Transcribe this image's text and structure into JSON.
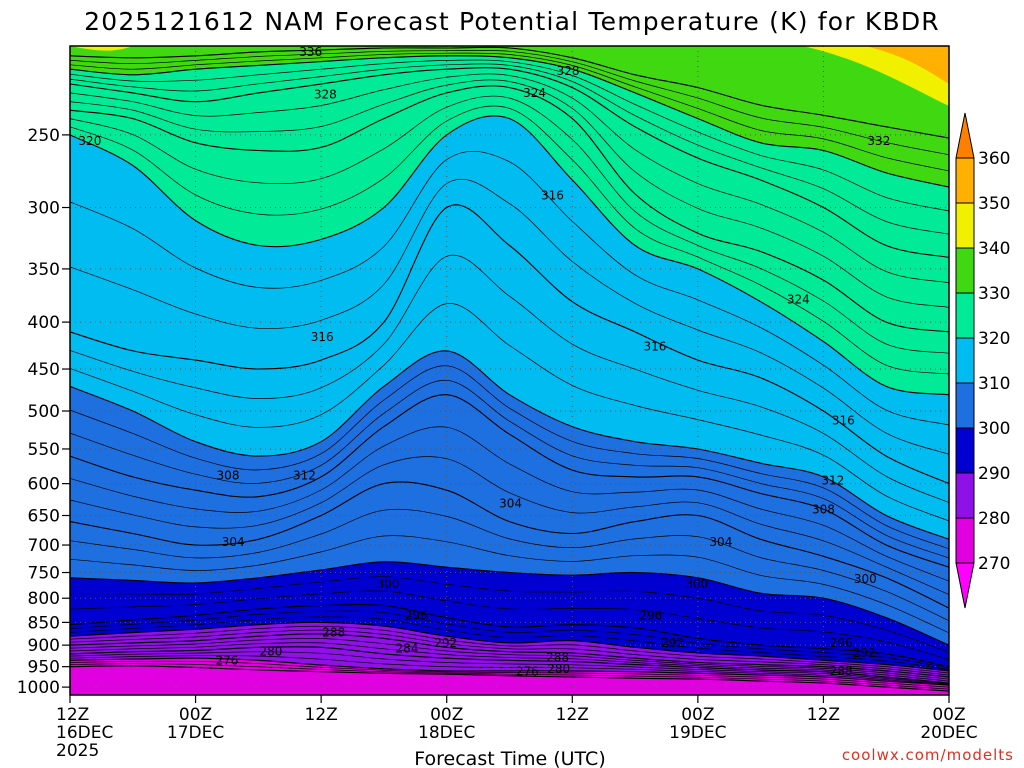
{
  "chart_data": {
    "type": "heatmap",
    "title": "2025121612 NAM Forecast Potential Temperature (K) for KBDR",
    "xlabel": "Forecast Time (UTC)",
    "ylabel": "",
    "credit": "coolwx.com/modelts",
    "x_ticks": [
      {
        "hours": 0,
        "lines": [
          "12Z",
          "16DEC",
          "2025"
        ]
      },
      {
        "hours": 12,
        "lines": [
          "00Z",
          "17DEC"
        ]
      },
      {
        "hours": 24,
        "lines": [
          "12Z"
        ]
      },
      {
        "hours": 36,
        "lines": [
          "00Z",
          "18DEC"
        ]
      },
      {
        "hours": 48,
        "lines": [
          "12Z"
        ]
      },
      {
        "hours": 60,
        "lines": [
          "00Z",
          "19DEC"
        ]
      },
      {
        "hours": 72,
        "lines": [
          "12Z"
        ]
      },
      {
        "hours": 84,
        "lines": [
          "00Z",
          "20DEC"
        ]
      }
    ],
    "x_range_hours": [
      0,
      84
    ],
    "y_ticks": [
      250,
      300,
      350,
      400,
      450,
      500,
      550,
      600,
      650,
      700,
      750,
      800,
      850,
      900,
      950,
      1000
    ],
    "y_range_hpa": [
      200,
      1020
    ],
    "y_scale": "log-pressure (inverted)",
    "grid": true,
    "colorbar": {
      "labels": [
        270,
        280,
        290,
        300,
        310,
        320,
        330,
        340,
        350,
        360
      ],
      "bands": [
        {
          "min": 270,
          "max": 280,
          "color": "#e000e0"
        },
        {
          "min": 280,
          "max": 290,
          "color": "#9010e8"
        },
        {
          "min": 290,
          "max": 300,
          "color": "#0000d0"
        },
        {
          "min": 300,
          "max": 310,
          "color": "#1e70e0"
        },
        {
          "min": 310,
          "max": 320,
          "color": "#00bcf0"
        },
        {
          "min": 320,
          "max": 330,
          "color": "#00ea98"
        },
        {
          "min": 330,
          "max": 340,
          "color": "#40d810"
        },
        {
          "min": 340,
          "max": 350,
          "color": "#f0f000"
        },
        {
          "min": 350,
          "max": 360,
          "color": "#ffb000"
        }
      ],
      "under_color": "#ff00ff",
      "over_color": "#ff8000",
      "ground_color": "#a0522d"
    },
    "isentropes": [
      {
        "theta": 276,
        "p": [
          950,
          948,
          952,
          958,
          962,
          966,
          968,
          972,
          975,
          978,
          980,
          985,
          990,
          1000,
          1010
        ]
      },
      {
        "theta": 280,
        "p": [
          935,
          932,
          930,
          935,
          946,
          955,
          960,
          960,
          960,
          962,
          966,
          970,
          975,
          985,
          995
        ]
      },
      {
        "theta": 284,
        "p": [
          920,
          915,
          912,
          905,
          905,
          920,
          930,
          935,
          938,
          945,
          952,
          958,
          962,
          975,
          990
        ]
      },
      {
        "theta": 288,
        "p": [
          900,
          895,
          890,
          880,
          875,
          885,
          905,
          915,
          918,
          930,
          940,
          945,
          950,
          960,
          975
        ]
      },
      {
        "theta": 292,
        "p": [
          880,
          872,
          865,
          855,
          850,
          858,
          880,
          895,
          890,
          905,
          918,
          925,
          935,
          945,
          960
        ]
      },
      {
        "theta": 296,
        "p": [
          855,
          845,
          835,
          822,
          815,
          815,
          840,
          860,
          855,
          862,
          885,
          900,
          908,
          920,
          950
        ]
      },
      {
        "theta": 300,
        "p": [
          760,
          765,
          770,
          760,
          745,
          730,
          740,
          750,
          755,
          750,
          760,
          790,
          800,
          840,
          900
        ]
      },
      {
        "theta": 304,
        "p": [
          660,
          680,
          700,
          690,
          650,
          600,
          610,
          660,
          680,
          660,
          650,
          690,
          720,
          760,
          820
        ]
      },
      {
        "theta": 308,
        "p": [
          560,
          590,
          610,
          620,
          590,
          520,
          480,
          530,
          580,
          590,
          590,
          615,
          640,
          700,
          740
        ]
      },
      {
        "theta": 312,
        "p": [
          470,
          500,
          540,
          560,
          540,
          470,
          430,
          480,
          520,
          540,
          550,
          570,
          590,
          650,
          690
        ]
      },
      {
        "theta": 316,
        "p": [
          410,
          430,
          440,
          450,
          440,
          400,
          300,
          330,
          380,
          410,
          440,
          460,
          500,
          560,
          600
        ]
      },
      {
        "theta": 320,
        "p": [
          250,
          270,
          310,
          330,
          325,
          300,
          250,
          240,
          280,
          330,
          350,
          380,
          420,
          470,
          480
        ]
      },
      {
        "theta": 324,
        "p": [
          235,
          240,
          255,
          260,
          258,
          240,
          225,
          222,
          240,
          290,
          320,
          335,
          360,
          400,
          410
        ]
      },
      {
        "theta": 328,
        "p": [
          220,
          225,
          230,
          225,
          220,
          215,
          212,
          212,
          222,
          245,
          265,
          280,
          300,
          330,
          340
        ]
      },
      {
        "theta": 332,
        "p": [
          212,
          215,
          212,
          210,
          208,
          206,
          205,
          206,
          212,
          225,
          240,
          255,
          260,
          275,
          285
        ]
      },
      {
        "theta": 336,
        "p": [
          205,
          206,
          205,
          203,
          202,
          201,
          201,
          201,
          206,
          215,
          222,
          232,
          238,
          245,
          252
        ]
      }
    ],
    "contour_labels": [
      {
        "text": "336",
        "hours": 23,
        "p": 203
      },
      {
        "text": "328",
        "hours": 47.6,
        "p": 213
      },
      {
        "text": "324",
        "hours": 44.4,
        "p": 225
      },
      {
        "text": "328",
        "hours": 24.4,
        "p": 226
      },
      {
        "text": "320",
        "hours": 1.9,
        "p": 254
      },
      {
        "text": "332",
        "hours": 77.3,
        "p": 254
      },
      {
        "text": "316",
        "hours": 46.1,
        "p": 291
      },
      {
        "text": "324",
        "hours": 69.6,
        "p": 378
      },
      {
        "text": "316",
        "hours": 24.1,
        "p": 415
      },
      {
        "text": "316",
        "hours": 55.9,
        "p": 425
      },
      {
        "text": "316",
        "hours": 73.9,
        "p": 512
      },
      {
        "text": "308",
        "hours": 15.1,
        "p": 588
      },
      {
        "text": "312",
        "hours": 22.4,
        "p": 588
      },
      {
        "text": "312",
        "hours": 72.9,
        "p": 595
      },
      {
        "text": "308",
        "hours": 72.0,
        "p": 640
      },
      {
        "text": "304",
        "hours": 42.1,
        "p": 631
      },
      {
        "text": "304",
        "hours": 15.6,
        "p": 695
      },
      {
        "text": "304",
        "hours": 62.2,
        "p": 695
      },
      {
        "text": "300",
        "hours": 30.4,
        "p": 772
      },
      {
        "text": "300",
        "hours": 59.9,
        "p": 772
      },
      {
        "text": "300",
        "hours": 76.0,
        "p": 762
      },
      {
        "text": "296",
        "hours": 33.1,
        "p": 835
      },
      {
        "text": "296",
        "hours": 55.5,
        "p": 835
      },
      {
        "text": "296",
        "hours": 73.7,
        "p": 895
      },
      {
        "text": "292",
        "hours": 35.9,
        "p": 895
      },
      {
        "text": "292",
        "hours": 57.6,
        "p": 895
      },
      {
        "text": "292",
        "hours": 75.9,
        "p": 918
      },
      {
        "text": "288",
        "hours": 25.2,
        "p": 872
      },
      {
        "text": "288",
        "hours": 46.6,
        "p": 928
      },
      {
        "text": "288",
        "hours": 73.7,
        "p": 960
      },
      {
        "text": "284",
        "hours": 32.2,
        "p": 908
      },
      {
        "text": "280",
        "hours": 19.2,
        "p": 915
      },
      {
        "text": "280",
        "hours": 46.7,
        "p": 955
      },
      {
        "text": "276",
        "hours": 15.0,
        "p": 935
      },
      {
        "text": "276",
        "hours": 43.7,
        "p": 962
      }
    ]
  }
}
